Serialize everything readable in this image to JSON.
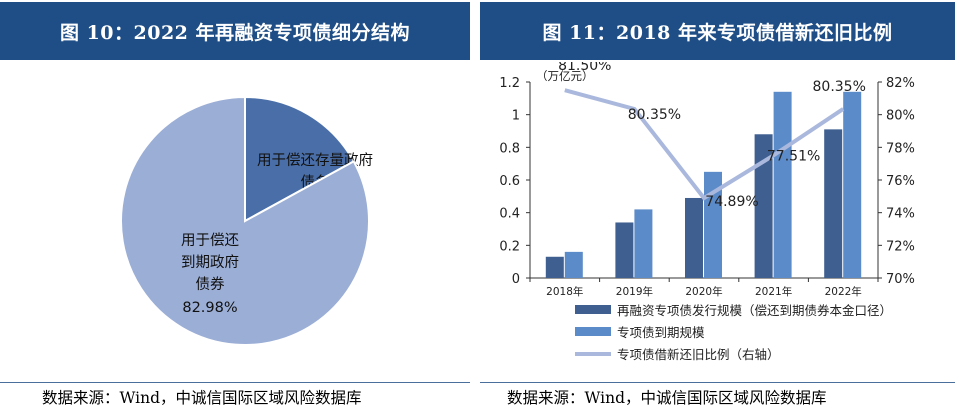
{
  "left": {
    "title": "图 10：2022 年再融资专项债细分结构",
    "source": "数据来源：Wind，中诚信国际区域风险数据库"
  },
  "right": {
    "title": "图 11：2018 年来专项债借新还旧比例",
    "source": "数据来源：Wind，中诚信国际区域风险数据库"
  },
  "chart_data": [
    {
      "type": "pie",
      "title": "",
      "slices": [
        {
          "label_lines": [
            "用于偿还存量政府",
            "债务"
          ],
          "value": 17.02,
          "value_label": "17.02%",
          "color": "#4a6fa8"
        },
        {
          "label_lines": [
            "用于偿还",
            "到期政府",
            "债券"
          ],
          "value": 82.98,
          "value_label": "82.98%",
          "color": "#9baed6"
        }
      ]
    },
    {
      "type": "bar",
      "title": "",
      "unit_label": "（万亿元）",
      "categories": [
        "2018年",
        "2019年",
        "2020年",
        "2021年",
        "2022年"
      ],
      "y_left": {
        "min": 0,
        "max": 1.2,
        "ticks": [
          "0",
          "0.2",
          "0.4",
          "0.6",
          "0.8",
          "1",
          "1.2"
        ]
      },
      "y_right": {
        "min": 70,
        "max": 82,
        "ticks": [
          "70%",
          "72%",
          "74%",
          "76%",
          "78%",
          "80%",
          "82%"
        ]
      },
      "series": [
        {
          "name": "再融资专项债发行规模（偿还到期债券本金口径）",
          "type": "bar",
          "color": "#3e5f8f",
          "values": [
            0.13,
            0.34,
            0.49,
            0.88,
            0.91
          ]
        },
        {
          "name": "专项债到期规模",
          "type": "bar",
          "color": "#5c8bc9",
          "values": [
            0.16,
            0.42,
            0.65,
            1.14,
            1.14
          ]
        },
        {
          "name": "专项债借新还旧比例（右轴）",
          "type": "line",
          "axis": "right",
          "color": "#a9b8dc",
          "values": [
            81.5,
            80.35,
            74.89,
            77.51,
            80.35
          ],
          "labels": [
            "81.50%",
            "80.35%",
            "74.89%",
            "77.51%",
            "80.35%"
          ]
        }
      ],
      "legend_position": "bottom"
    }
  ]
}
